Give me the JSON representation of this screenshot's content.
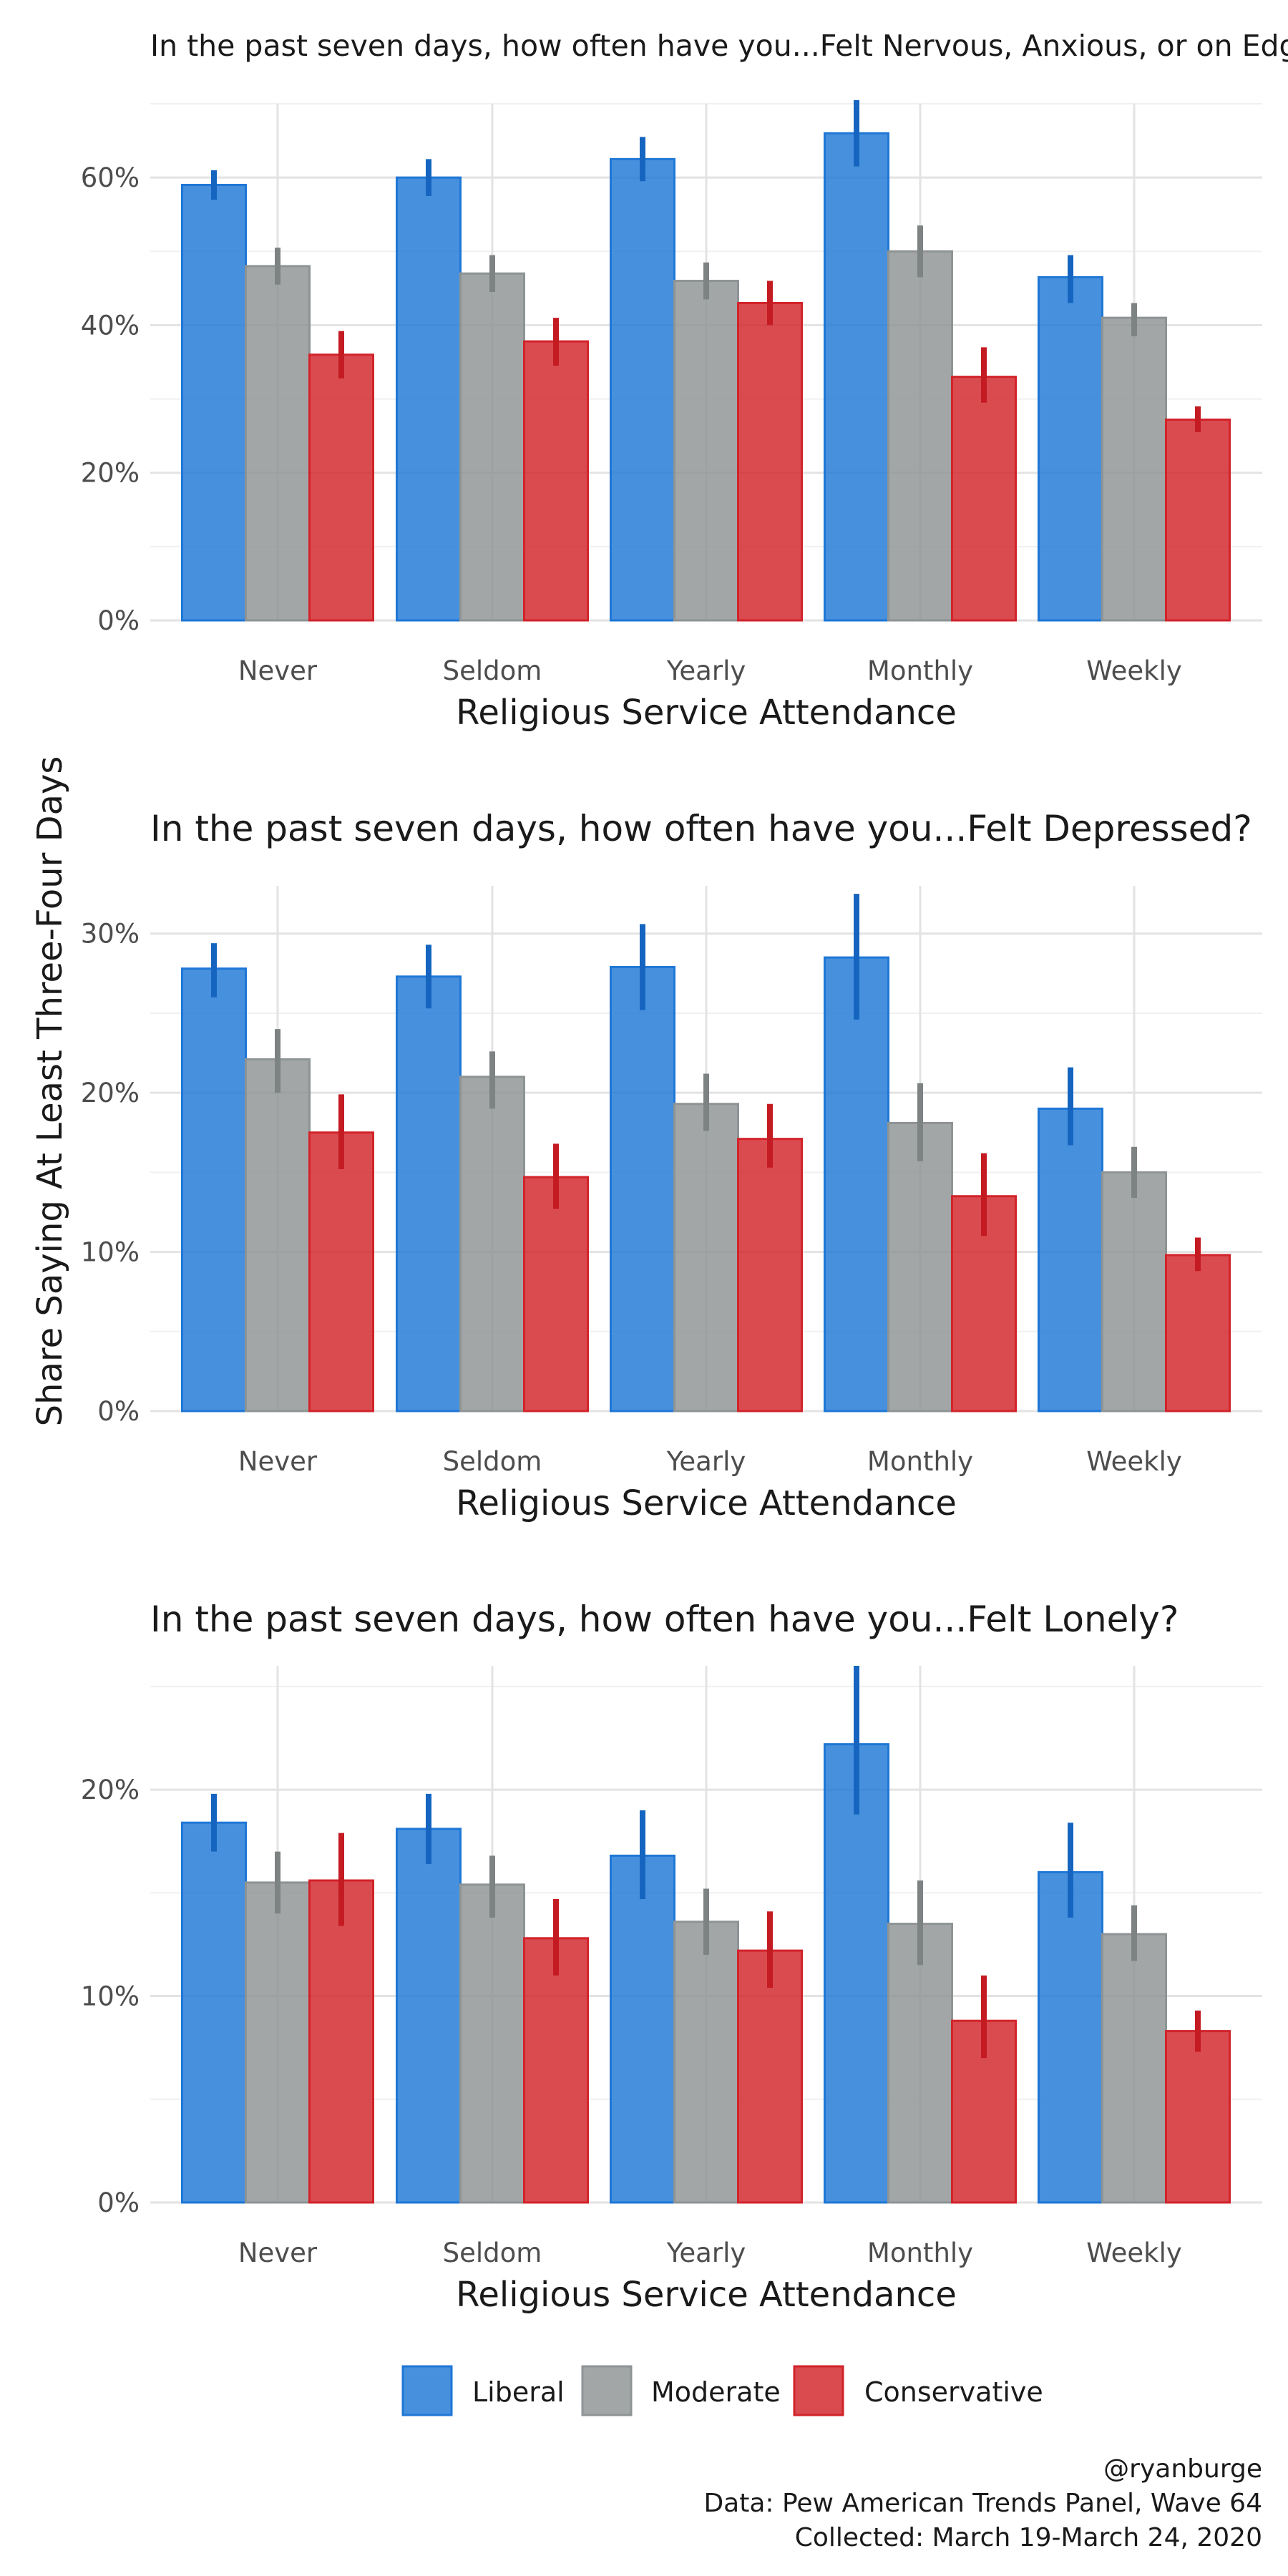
{
  "shared_ylabel": "Share Saying At Least Three-Four Days",
  "legend": [
    "Liberal",
    "Moderate",
    "Conservative"
  ],
  "colors": {
    "Liberal": "#1f77d6",
    "Moderate": "#8e9394",
    "Conservative": "#d2232a"
  },
  "caption": [
    "@ryanburge",
    "Data: Pew American Trends Panel, Wave 64",
    "Collected: March 19-March 24, 2020"
  ],
  "chart_data": [
    {
      "type": "bar",
      "title": "In the past seven days, how often have you...Felt Nervous, Anxious, or on Edge?",
      "xlabel": "Religious Service Attendance",
      "categories": [
        "Never",
        "Seldom",
        "Yearly",
        "Monthly",
        "Weekly"
      ],
      "ylim": [
        0,
        0.7
      ],
      "yticks": [
        0,
        0.2,
        0.4,
        0.6
      ],
      "ytick_labels": [
        "0%",
        "20%",
        "40%",
        "60%"
      ],
      "series": [
        {
          "name": "Liberal",
          "values": [
            0.59,
            0.6,
            0.625,
            0.66,
            0.465
          ],
          "err_low": [
            0.57,
            0.575,
            0.595,
            0.615,
            0.43
          ],
          "err_high": [
            0.61,
            0.625,
            0.655,
            0.705,
            0.495
          ]
        },
        {
          "name": "Moderate",
          "values": [
            0.48,
            0.47,
            0.46,
            0.5,
            0.41
          ],
          "err_low": [
            0.455,
            0.445,
            0.435,
            0.465,
            0.385
          ],
          "err_high": [
            0.505,
            0.495,
            0.485,
            0.535,
            0.43
          ]
        },
        {
          "name": "Conservative",
          "values": [
            0.36,
            0.378,
            0.43,
            0.33,
            0.272
          ],
          "err_low": [
            0.328,
            0.345,
            0.4,
            0.295,
            0.255
          ],
          "err_high": [
            0.392,
            0.41,
            0.46,
            0.37,
            0.29
          ]
        }
      ]
    },
    {
      "type": "bar",
      "title": "In the past seven days, how often have you...Felt Depressed?",
      "xlabel": "Religious Service Attendance",
      "categories": [
        "Never",
        "Seldom",
        "Yearly",
        "Monthly",
        "Weekly"
      ],
      "ylim": [
        0,
        0.33
      ],
      "yticks": [
        0,
        0.1,
        0.2,
        0.3
      ],
      "ytick_labels": [
        "0%",
        "10%",
        "20%",
        "30%"
      ],
      "series": [
        {
          "name": "Liberal",
          "values": [
            0.278,
            0.273,
            0.279,
            0.285,
            0.19
          ],
          "err_low": [
            0.26,
            0.253,
            0.252,
            0.246,
            0.167
          ],
          "err_high": [
            0.294,
            0.293,
            0.306,
            0.325,
            0.216
          ]
        },
        {
          "name": "Moderate",
          "values": [
            0.221,
            0.21,
            0.193,
            0.181,
            0.15
          ],
          "err_low": [
            0.2,
            0.19,
            0.176,
            0.157,
            0.134
          ],
          "err_high": [
            0.24,
            0.226,
            0.212,
            0.206,
            0.166
          ]
        },
        {
          "name": "Conservative",
          "values": [
            0.175,
            0.147,
            0.171,
            0.135,
            0.098
          ],
          "err_low": [
            0.152,
            0.127,
            0.153,
            0.11,
            0.088
          ],
          "err_high": [
            0.199,
            0.168,
            0.193,
            0.162,
            0.109
          ]
        }
      ]
    },
    {
      "type": "bar",
      "title": "In the past seven days, how often have you...Felt Lonely?",
      "xlabel": "Religious Service Attendance",
      "categories": [
        "Never",
        "Seldom",
        "Yearly",
        "Monthly",
        "Weekly"
      ],
      "ylim": [
        0,
        0.26
      ],
      "yticks": [
        0,
        0.1,
        0.2
      ],
      "ytick_labels": [
        "0%",
        "10%",
        "20%"
      ],
      "series": [
        {
          "name": "Liberal",
          "values": [
            0.184,
            0.181,
            0.168,
            0.222,
            0.16
          ],
          "err_low": [
            0.17,
            0.164,
            0.147,
            0.188,
            0.138
          ],
          "err_high": [
            0.198,
            0.198,
            0.19,
            0.26,
            0.184
          ]
        },
        {
          "name": "Moderate",
          "values": [
            0.155,
            0.154,
            0.136,
            0.135,
            0.13
          ],
          "err_low": [
            0.14,
            0.138,
            0.12,
            0.115,
            0.117
          ],
          "err_high": [
            0.17,
            0.168,
            0.152,
            0.156,
            0.144
          ]
        },
        {
          "name": "Conservative",
          "values": [
            0.156,
            0.128,
            0.122,
            0.088,
            0.083
          ],
          "err_low": [
            0.134,
            0.11,
            0.104,
            0.07,
            0.073
          ],
          "err_high": [
            0.179,
            0.147,
            0.141,
            0.11,
            0.093
          ]
        }
      ]
    }
  ]
}
